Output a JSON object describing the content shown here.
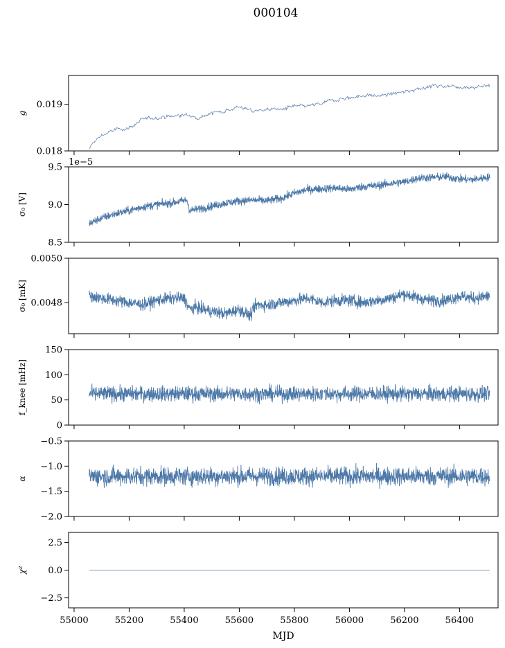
{
  "figure": {
    "title": "000104",
    "xlabel": "MJD",
    "line_color": "#4c78a8",
    "x_ticks": [
      "55000",
      "55200",
      "55400",
      "55600",
      "55800",
      "56000",
      "56200",
      "56400"
    ]
  },
  "chart_data": [
    {
      "type": "line",
      "ylabel": "g",
      "x_range": [
        54980,
        56540
      ],
      "ylim": [
        0.018,
        0.01962
      ],
      "yticks": [
        0.018,
        0.019
      ],
      "ytick_labels": [
        "0.018",
        "0.019"
      ],
      "offset_text": "",
      "x": [
        55055,
        55070,
        55100,
        55150,
        55200,
        55250,
        55300,
        55350,
        55400,
        55450,
        55500,
        55550,
        55600,
        55650,
        55700,
        55750,
        55800,
        55850,
        55900,
        55950,
        56000,
        56050,
        56100,
        56150,
        56200,
        56250,
        56300,
        56350,
        56400,
        56450,
        56510
      ],
      "y": [
        0.01802,
        0.01818,
        0.01834,
        0.01845,
        0.0185,
        0.01867,
        0.01872,
        0.01874,
        0.01877,
        0.01873,
        0.01881,
        0.01887,
        0.01895,
        0.01885,
        0.0189,
        0.01889,
        0.01895,
        0.01896,
        0.01901,
        0.01911,
        0.01914,
        0.01919,
        0.01918,
        0.01922,
        0.01926,
        0.01935,
        0.01939,
        0.0194,
        0.01938,
        0.01937,
        0.0194
      ],
      "noise": 3.5e-05,
      "dense": false
    },
    {
      "type": "line",
      "ylabel": "σ₀ [V]",
      "x_range": [
        54980,
        56540
      ],
      "ylim": [
        8.5,
        9.5
      ],
      "yticks": [
        8.5,
        9.0,
        9.5
      ],
      "ytick_labels": [
        "8.5",
        "9.0",
        "9.5"
      ],
      "offset_text": "1e−5",
      "x": [
        55055,
        55100,
        55150,
        55200,
        55250,
        55300,
        55350,
        55410,
        55420,
        55450,
        55500,
        55550,
        55600,
        55650,
        55700,
        55750,
        55800,
        55850,
        55900,
        55950,
        56000,
        56050,
        56100,
        56150,
        56200,
        56250,
        56300,
        56350,
        56400,
        56450,
        56510
      ],
      "y": [
        8.75,
        8.82,
        8.88,
        8.92,
        8.97,
        9.0,
        9.02,
        9.06,
        8.92,
        8.94,
        8.98,
        9.02,
        9.05,
        9.06,
        9.05,
        9.08,
        9.15,
        9.2,
        9.21,
        9.22,
        9.2,
        9.24,
        9.25,
        9.28,
        9.3,
        9.35,
        9.36,
        9.37,
        9.34,
        9.33,
        9.37
      ],
      "noise": 0.05,
      "dense": true
    },
    {
      "type": "line",
      "ylabel": "σ₀ [mK]",
      "x_range": [
        54980,
        56540
      ],
      "ylim": [
        0.00466,
        0.005
      ],
      "yticks": [
        0.0048,
        0.005
      ],
      "ytick_labels": [
        "0.0048",
        "0.0050"
      ],
      "offset_text": "",
      "x": [
        55055,
        55100,
        55150,
        55200,
        55250,
        55300,
        55350,
        55400,
        55420,
        55440,
        55500,
        55550,
        55600,
        55640,
        55660,
        55700,
        55750,
        55800,
        55850,
        55900,
        55950,
        56000,
        56050,
        56100,
        56150,
        56200,
        56250,
        56300,
        56350,
        56400,
        56450,
        56510
      ],
      "y": [
        0.00483,
        0.00482,
        0.00481,
        0.0048,
        0.00479,
        0.00481,
        0.00482,
        0.00482,
        0.00477,
        0.00478,
        0.00476,
        0.00475,
        0.00477,
        0.00474,
        0.00479,
        0.00479,
        0.0048,
        0.00481,
        0.00482,
        0.0048,
        0.00481,
        0.00481,
        0.0048,
        0.00481,
        0.00482,
        0.00484,
        0.00482,
        0.00481,
        0.00481,
        0.00483,
        0.00482,
        0.00483
      ],
      "noise": 2.5e-05,
      "dense": true
    },
    {
      "type": "line",
      "ylabel": "f_knee [mHz]",
      "x_range": [
        54980,
        56540
      ],
      "ylim": [
        0,
        150
      ],
      "yticks": [
        0,
        50,
        100,
        150
      ],
      "ytick_labels": [
        "0",
        "50",
        "100",
        "150"
      ],
      "offset_text": "",
      "x": [
        55055,
        56510
      ],
      "y": [
        62,
        62
      ],
      "noise": 14,
      "dense": true,
      "gap_at": 55905
    },
    {
      "type": "line",
      "ylabel": "α",
      "x_range": [
        54980,
        56540
      ],
      "ylim": [
        -2.0,
        -0.5
      ],
      "yticks": [
        -2.0,
        -1.5,
        -1.0,
        -0.5
      ],
      "ytick_labels": [
        "−2.0",
        "−1.5",
        "−1.0",
        "−0.5"
      ],
      "offset_text": "",
      "x": [
        55055,
        56510
      ],
      "y": [
        -1.2,
        -1.2
      ],
      "noise": 0.17,
      "dense": true,
      "gap_at": 55905
    },
    {
      "type": "line",
      "ylabel": "χ²",
      "x_range": [
        54980,
        56540
      ],
      "ylim": [
        -3.4,
        3.4
      ],
      "yticks": [
        -2.5,
        0.0,
        2.5
      ],
      "ytick_labels": [
        "−2.5",
        "0.0",
        "2.5"
      ],
      "offset_text": "",
      "x": [
        55055,
        56510
      ],
      "y": [
        0.0,
        0.0
      ],
      "noise": 0,
      "dense": false
    }
  ]
}
